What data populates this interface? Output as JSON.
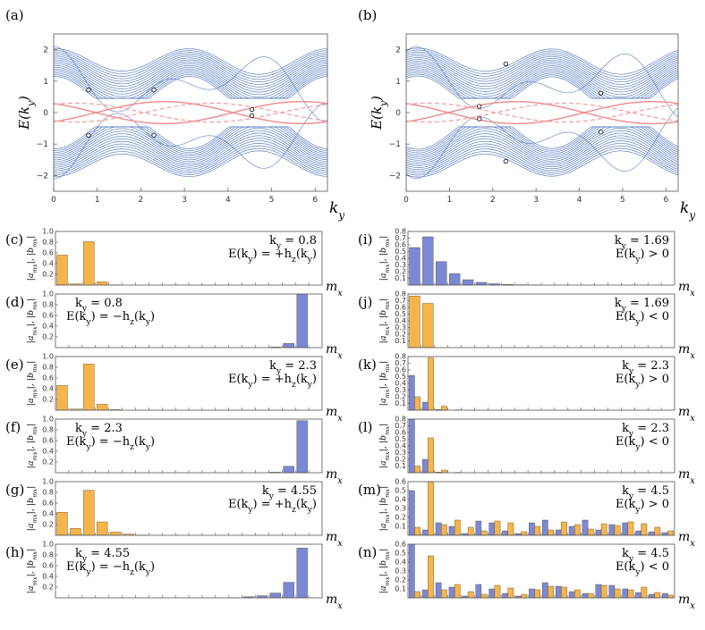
{
  "colors": {
    "band": "#5b7fc0",
    "edge_solid": "#f08a8a",
    "edge_dashed": "#f4a3a3",
    "bar_a": "#f5b54a",
    "bar_b": "#7b88d6",
    "bar_stroke": "#5a4a2a"
  },
  "spectra": [
    {
      "panel": "(a)",
      "xlabel": "k_y",
      "ylabel": "E(k_y)",
      "xlim": [
        0,
        6.283
      ],
      "ylim": [
        -2.5,
        2.5
      ],
      "xticks": [
        "0",
        "1",
        "2",
        "3",
        "4",
        "5",
        "6"
      ],
      "yticks": [
        "-2",
        "-1",
        "0",
        "1",
        "2"
      ],
      "marked_points": [
        {
          "x": 0.8,
          "y": 0.72
        },
        {
          "x": 0.8,
          "y": -0.72
        },
        {
          "x": 2.3,
          "y": 0.72
        },
        {
          "x": 2.3,
          "y": -0.72
        },
        {
          "x": 4.55,
          "y": 0.1
        },
        {
          "x": 4.55,
          "y": -0.1
        }
      ]
    },
    {
      "panel": "(b)",
      "xlabel": "k_y",
      "ylabel": "E(k_y)",
      "xlim": [
        0,
        6.283
      ],
      "ylim": [
        -2.5,
        2.5
      ],
      "xticks": [
        "0",
        "1",
        "2",
        "3",
        "4",
        "5",
        "6"
      ],
      "yticks": [
        "-2",
        "-1",
        "0",
        "1",
        "2"
      ],
      "marked_points": [
        {
          "x": 1.69,
          "y": 0.2
        },
        {
          "x": 1.69,
          "y": -0.2
        },
        {
          "x": 2.3,
          "y": 1.55
        },
        {
          "x": 2.3,
          "y": -1.55
        },
        {
          "x": 4.5,
          "y": 0.62
        },
        {
          "x": 4.5,
          "y": -0.62
        }
      ]
    }
  ],
  "chart_data": [
    {
      "type": "bar",
      "panel": "(c)",
      "ky": "k_y = 0.8",
      "energy": "E(k_y) = +h_z(k_y)",
      "ylim": [
        0,
        1.0
      ],
      "yticks": [
        "0.2",
        "0.4",
        "0.6",
        "0.8",
        "1.0"
      ],
      "series": [
        {
          "values": [
            0.56,
            0.02,
            0.81,
            0.06,
            0.005,
            0,
            0,
            0,
            0,
            0,
            0,
            0,
            0,
            0,
            0,
            0,
            0,
            0,
            0,
            0
          ]
        },
        {
          "values": []
        }
      ]
    },
    {
      "type": "bar",
      "panel": "(d)",
      "ky": "k_y = 0.8",
      "energy": "E(k_y) = −h_z(k_y)",
      "ylim": [
        0,
        1.0
      ],
      "yticks": [
        "0.2",
        "0.4",
        "0.6",
        "0.8",
        "1.0"
      ],
      "series": [
        {
          "values": []
        },
        {
          "values": [
            0,
            0,
            0,
            0,
            0,
            0,
            0,
            0,
            0,
            0,
            0,
            0,
            0,
            0,
            0,
            0,
            0.01,
            0.08,
            1.0,
            0
          ]
        }
      ]
    },
    {
      "type": "bar",
      "panel": "(e)",
      "ky": "k_y = 2.3",
      "energy": "E(k_y) = +h_z(k_y)",
      "ylim": [
        0,
        1.0
      ],
      "yticks": [
        "0.2",
        "0.4",
        "0.6",
        "0.8",
        "1.0"
      ],
      "series": [
        {
          "values": [
            0.46,
            0.02,
            0.86,
            0.11,
            0.01,
            0,
            0,
            0,
            0,
            0,
            0,
            0,
            0,
            0,
            0,
            0,
            0,
            0,
            0,
            0
          ]
        },
        {
          "values": []
        }
      ]
    },
    {
      "type": "bar",
      "panel": "(f)",
      "ky": "k_y = 2.3",
      "energy": "E(k_y) = −h_z(k_y)",
      "ylim": [
        0,
        1.0
      ],
      "yticks": [
        "0.2",
        "0.4",
        "0.6",
        "0.8",
        "1.0"
      ],
      "series": [
        {
          "values": []
        },
        {
          "values": [
            0,
            0,
            0,
            0,
            0,
            0,
            0,
            0,
            0,
            0,
            0,
            0,
            0,
            0,
            0,
            0,
            0.01,
            0.12,
            0.97,
            0
          ]
        }
      ]
    },
    {
      "type": "bar",
      "panel": "(g)",
      "ky": "k_y = 4.55",
      "energy": "E(k_y) = +h_z(k_y)",
      "ylim": [
        0,
        1.0
      ],
      "yticks": [
        "0.2",
        "0.4",
        "0.6",
        "0.8",
        "1.0"
      ],
      "series": [
        {
          "values": [
            0.43,
            0.13,
            0.84,
            0.25,
            0.06,
            0.02,
            0.005,
            0,
            0,
            0,
            0,
            0,
            0,
            0,
            0,
            0,
            0,
            0,
            0,
            0
          ]
        },
        {
          "values": []
        }
      ]
    },
    {
      "type": "bar",
      "panel": "(h)",
      "ky": "k_y = 4.55",
      "energy": "E(k_y) = −h_z(k_y)",
      "ylim": [
        0,
        1.0
      ],
      "yticks": [
        "0.2",
        "0.4",
        "0.6",
        "0.8",
        "1.0"
      ],
      "series": [
        {
          "values": []
        },
        {
          "values": [
            0,
            0,
            0,
            0,
            0,
            0,
            0,
            0,
            0,
            0,
            0,
            0,
            0,
            0.005,
            0.02,
            0.04,
            0.09,
            0.29,
            0.93,
            0
          ]
        }
      ]
    },
    {
      "type": "bar",
      "panel": "(i)",
      "ky": "k_y = 1.69",
      "energy": "E(k_y) > 0",
      "ylim": [
        0,
        0.8
      ],
      "yticks": [
        "0.1",
        "0.2",
        "0.3",
        "0.4",
        "0.5",
        "0.6",
        "0.7",
        "0.8"
      ],
      "series": [
        {
          "values": []
        },
        {
          "values": [
            0.56,
            0.72,
            0.35,
            0.17,
            0.08,
            0.04,
            0.02,
            0.01,
            0.005,
            0.002,
            0,
            0,
            0,
            0,
            0,
            0,
            0,
            0,
            0,
            0
          ]
        }
      ]
    },
    {
      "type": "bar",
      "panel": "(j)",
      "ky": "k_y = 1.69",
      "energy": "E(k_y) < 0",
      "ylim": [
        0,
        0.8
      ],
      "yticks": [
        "0.1",
        "0.2",
        "0.3",
        "0.4",
        "0.5",
        "0.6",
        "0.7",
        "0.8"
      ],
      "series": [
        {
          "values": [
            0.77,
            0.66,
            0,
            0,
            0,
            0,
            0,
            0,
            0,
            0,
            0,
            0,
            0,
            0,
            0,
            0,
            0,
            0,
            0,
            0
          ]
        },
        {
          "values": []
        }
      ]
    },
    {
      "type": "bar",
      "panel": "(k)",
      "ky": "k_y = 2.3",
      "energy": "E(k_y) > 0",
      "ylim": [
        0,
        0.8
      ],
      "yticks": [
        "0.1",
        "0.2",
        "0.3",
        "0.4",
        "0.5",
        "0.6",
        "0.7",
        "0.8"
      ],
      "series": [
        {
          "values": [
            0.2,
            0.78,
            0.06,
            0.005,
            0,
            0,
            0,
            0,
            0,
            0,
            0,
            0,
            0,
            0,
            0,
            0,
            0,
            0,
            0,
            0
          ]
        },
        {
          "values": [
            0.52,
            0.12,
            0.01,
            0,
            0,
            0,
            0,
            0,
            0,
            0,
            0,
            0,
            0,
            0,
            0,
            0,
            0,
            0,
            0,
            0
          ]
        }
      ]
    },
    {
      "type": "bar",
      "panel": "(l)",
      "ky": "k_y = 2.3",
      "energy": "E(k_y) < 0",
      "ylim": [
        0,
        0.8
      ],
      "yticks": [
        "0.1",
        "0.2",
        "0.3",
        "0.4",
        "0.5",
        "0.6",
        "0.7",
        "0.8"
      ],
      "series": [
        {
          "values": [
            0.1,
            0.52,
            0.04,
            0.005,
            0,
            0,
            0,
            0,
            0,
            0,
            0,
            0,
            0,
            0,
            0,
            0,
            0,
            0,
            0,
            0
          ]
        },
        {
          "values": [
            0.8,
            0.2,
            0.01,
            0,
            0,
            0,
            0,
            0,
            0,
            0,
            0,
            0,
            0,
            0,
            0,
            0,
            0,
            0,
            0,
            0
          ]
        }
      ]
    },
    {
      "type": "bar",
      "panel": "(m)",
      "ky": "k_y = 4.5",
      "energy": "E(k_y) > 0",
      "ylim": [
        0,
        0.6
      ],
      "yticks": [
        "0.1",
        "0.2",
        "0.3",
        "0.4",
        "0.5",
        "0.6"
      ],
      "series": [
        {
          "values": [
            0.09,
            0.6,
            0.12,
            0.17,
            0.09,
            0.05,
            0.16,
            0.14,
            0.04,
            0.1,
            0.06,
            0.15,
            0.12,
            0.07,
            0.13,
            0.11,
            0.15,
            0.13,
            0.09,
            0.05
          ]
        },
        {
          "values": [
            0.5,
            0.06,
            0.14,
            0.1,
            0.02,
            0.16,
            0.14,
            0.05,
            0.02,
            0.14,
            0.17,
            0.06,
            0.1,
            0.17,
            0.06,
            0.12,
            0.14,
            0.05,
            0.04,
            0.03
          ]
        }
      ]
    },
    {
      "type": "bar",
      "panel": "(n)",
      "ky": "k_y = 4.5",
      "energy": "E(k_y) < 0",
      "ylim": [
        0,
        0.6
      ],
      "yticks": [
        "0.1",
        "0.2",
        "0.3",
        "0.4",
        "0.5",
        "0.6"
      ],
      "series": [
        {
          "values": [
            0.07,
            0.47,
            0.09,
            0.15,
            0.07,
            0.04,
            0.14,
            0.11,
            0.04,
            0.09,
            0.13,
            0.12,
            0.09,
            0.05,
            0.14,
            0.1,
            0.09,
            0.12,
            0.06,
            0.03
          ]
        },
        {
          "values": [
            0.62,
            0.09,
            0.17,
            0.12,
            0.02,
            0.15,
            0.1,
            0.05,
            0.02,
            0.1,
            0.17,
            0.13,
            0.07,
            0.05,
            0.15,
            0.14,
            0.1,
            0.06,
            0.04,
            0.05
          ]
        }
      ]
    }
  ],
  "bar_labels": {
    "ylabel": "|a_{m_x}|, |b_{m_x}|",
    "xlabel": "m_x"
  }
}
